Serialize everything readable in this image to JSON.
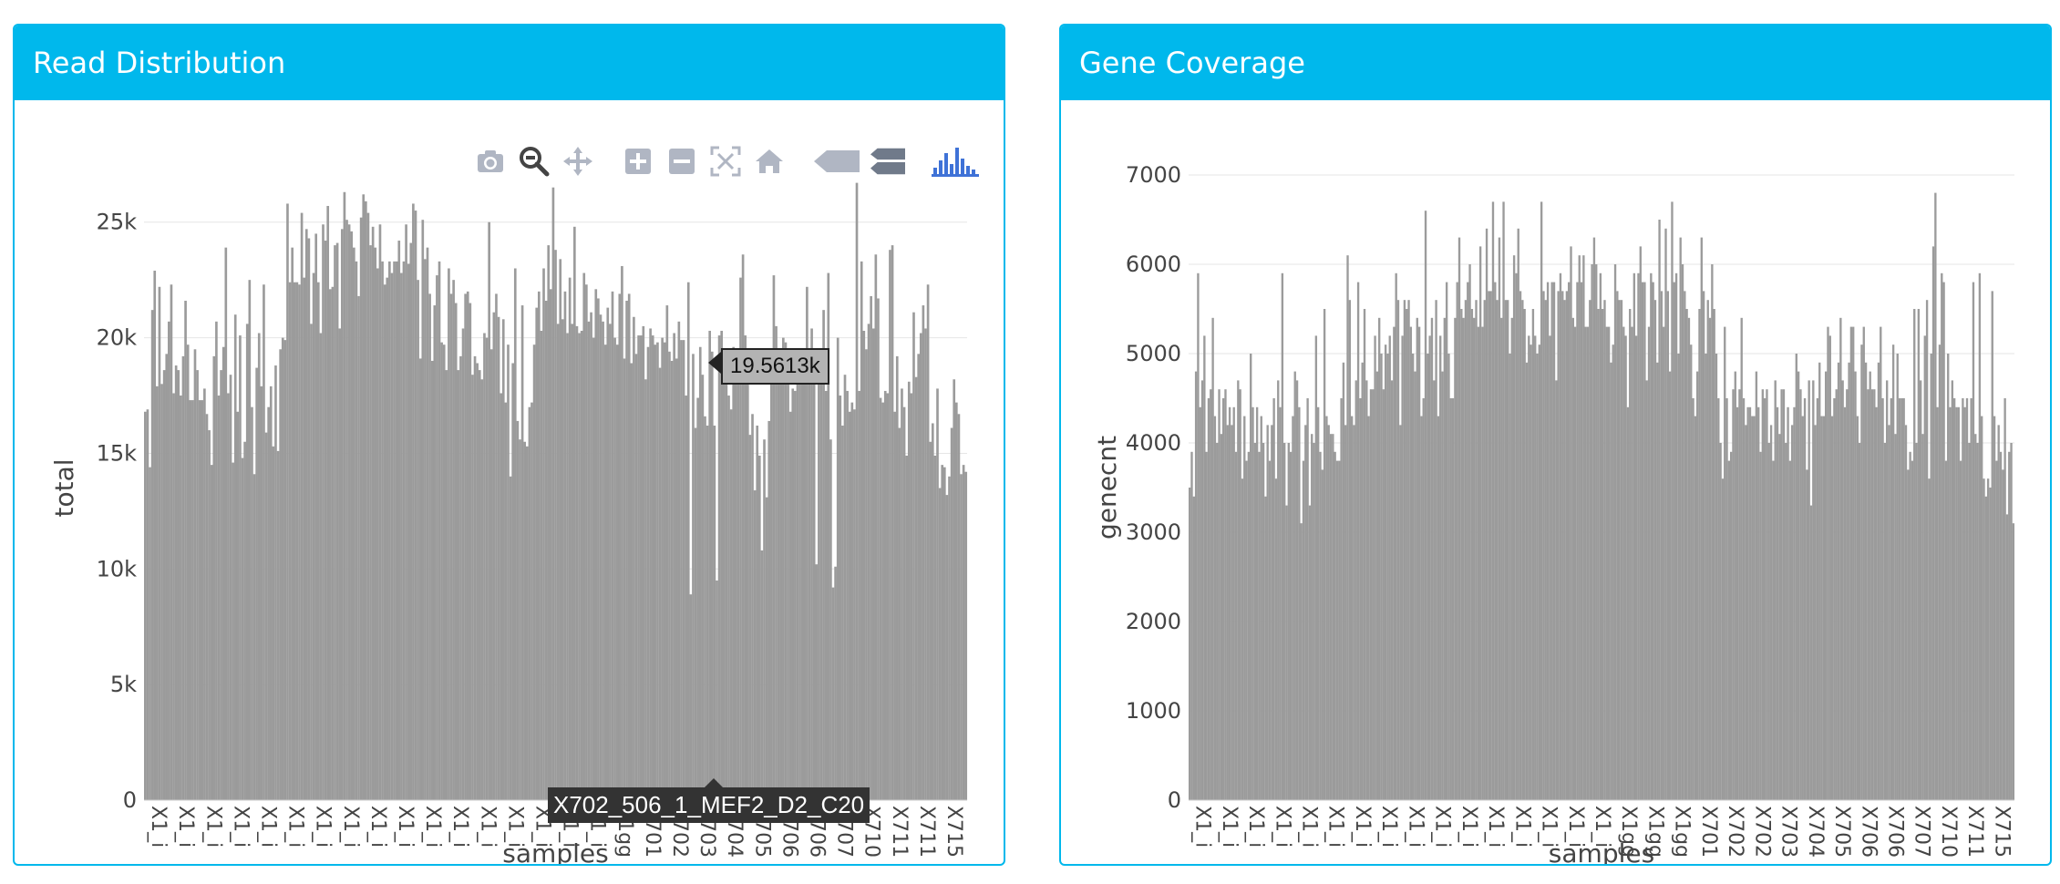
{
  "panels": {
    "read": {
      "title": "Read Distribution",
      "tooltip_value": "19.5613k",
      "hover_label": "X702_506_1_MEF2_D2_C20"
    },
    "gene": {
      "title": "Gene Coverage"
    }
  },
  "modebar": {
    "icons": [
      "camera-icon",
      "zoom-icon",
      "pan-icon",
      "zoom-in-icon",
      "zoom-out-icon",
      "autoscale-icon",
      "reset-axes-icon",
      "hover-closest-icon",
      "hover-compare-icon",
      "plotly-logo-icon"
    ],
    "active_color": "#444444",
    "inactive_color": "#b0b6c3",
    "logo_color": "#3f72d7"
  },
  "colors": {
    "header": "#00b8ec",
    "bar": "#9b9b9b",
    "grid": "#e6e6e6"
  },
  "chart_data": [
    {
      "type": "bar",
      "title": "Read Distribution",
      "xlabel": "samples",
      "ylabel": "total",
      "ylim": [
        0,
        27000
      ],
      "yticks": [
        0,
        5000,
        10000,
        15000,
        20000,
        25000
      ],
      "ytick_labels": [
        "0",
        "5k",
        "10k",
        "15k",
        "20k",
        "25k"
      ],
      "x_tick_labels": [
        "X1_i",
        "X1_i",
        "X1_i",
        "X1_i",
        "X1_i",
        "X1_i",
        "X1_i",
        "X1_i",
        "X1_i",
        "X1_i",
        "X1_i",
        "X1_i",
        "X1_i",
        "X1_i",
        "X1_i",
        "X1_i",
        "X1_i",
        "X1gg",
        "X701",
        "X702",
        "X703",
        "X704",
        "X705",
        "X706",
        "X706",
        "X707",
        "X710",
        "X711",
        "X711",
        "X715"
      ],
      "values": [
        16800,
        16900,
        14400,
        21200,
        22900,
        17900,
        22200,
        18000,
        18600,
        19300,
        20700,
        22300,
        17600,
        18800,
        18600,
        17500,
        19200,
        21600,
        19700,
        17300,
        17300,
        19500,
        18600,
        17300,
        17300,
        17800,
        16700,
        16000,
        14500,
        19200,
        20700,
        17500,
        18600,
        19600,
        23900,
        17600,
        18400,
        14600,
        21000,
        16800,
        20100,
        14800,
        15500,
        20600,
        22500,
        17000,
        14100,
        18700,
        20200,
        17900,
        22300,
        15900,
        17000,
        17900,
        15300,
        18800,
        15100,
        19500,
        20000,
        19900,
        25800,
        22400,
        23900,
        22400,
        22400,
        22300,
        25400,
        22600,
        24700,
        24300,
        20600,
        22800,
        24500,
        22400,
        20200,
        24900,
        24200,
        25700,
        22100,
        22200,
        24000,
        24100,
        20400,
        24700,
        26300,
        25100,
        24900,
        24600,
        23900,
        23300,
        21800,
        25200,
        26200,
        25900,
        25400,
        24000,
        24800,
        23900,
        23000,
        24900,
        23300,
        22300,
        22600,
        23300,
        22800,
        23300,
        23300,
        24200,
        22800,
        23300,
        24900,
        23200,
        24100,
        25800,
        25500,
        22500,
        19100,
        25100,
        23400,
        23900,
        21900,
        19000,
        21400,
        22700,
        23300,
        19800,
        19700,
        18600,
        23000,
        21900,
        22500,
        21500,
        18600,
        19200,
        20400,
        21900,
        22000,
        21500,
        18400,
        19200,
        18900,
        18600,
        18200,
        20200,
        20000,
        25000,
        19500,
        21100,
        21900,
        20900,
        17600,
        20800,
        17200,
        19700,
        14000,
        18900,
        23000,
        16400,
        15600,
        21400,
        15500,
        15300,
        17000,
        17200,
        19700,
        21300,
        22000,
        20300,
        23000,
        21600,
        24000,
        22100,
        26500,
        23800,
        20600,
        23400,
        20800,
        22000,
        20200,
        22600,
        20600,
        24800,
        20500,
        20200,
        20300,
        22800,
        22300,
        20700,
        21100,
        20000,
        22100,
        21700,
        21000,
        20700,
        19700,
        21300,
        20600,
        22000,
        20000,
        19700,
        21900,
        23100,
        19100,
        21600,
        21900,
        18900,
        20900,
        19300,
        20100,
        20100,
        20500,
        18200,
        19600,
        20400,
        20100,
        19700,
        19800,
        18700,
        20000,
        19800,
        21400,
        19400,
        19000,
        20200,
        19100,
        20700,
        19900,
        19900,
        17500,
        22400,
        8900,
        19300,
        16100,
        17400,
        19600,
        18400,
        16600,
        16200,
        20300,
        19400,
        16200,
        9500,
        20100,
        20300,
        18100,
        19200,
        17500,
        16900,
        19600,
        18400,
        18500,
        22600,
        23600,
        20100,
        19400,
        15800,
        16700,
        13400,
        16200,
        14900,
        10800,
        15600,
        13100,
        16400,
        19500,
        22700,
        20500,
        18700,
        18400,
        20000,
        19800,
        18700,
        16800,
        17800,
        17700,
        18900,
        18000,
        18400,
        19100,
        22200,
        19300,
        20400,
        19400,
        10200,
        18600,
        19300,
        21200,
        17700,
        22800,
        15600,
        9200,
        10100,
        20000,
        17500,
        16200,
        18400,
        17700,
        16800,
        17200,
        16900,
        26700,
        17700,
        23300,
        20300,
        19500,
        20600,
        21800,
        20400,
        23600,
        21700,
        17400,
        17200,
        17700,
        17600,
        23800,
        24000,
        16800,
        19200,
        16100,
        17800,
        17000,
        14900,
        18100,
        17600,
        21100,
        18300,
        19300,
        20200,
        21400,
        20400,
        22300,
        15500,
        16300,
        14900,
        17800,
        13500,
        14500,
        14400,
        13200,
        14000,
        16100,
        18200,
        17200,
        16700,
        14100,
        14500,
        14200
      ],
      "highlight_index": 246
    },
    {
      "type": "bar",
      "title": "Gene Coverage",
      "xlabel": "samples",
      "ylabel": "genecnt",
      "ylim": [
        0,
        7000
      ],
      "yticks": [
        0,
        1000,
        2000,
        3000,
        4000,
        5000,
        6000,
        7000
      ],
      "ytick_labels": [
        "0",
        "1000",
        "2000",
        "3000",
        "4000",
        "5000",
        "6000",
        "7000"
      ],
      "x_tick_labels": [
        "X1_i",
        "X1_i",
        "X1_i",
        "X1_i",
        "X1_i",
        "X1_i",
        "X1_i",
        "X1_i",
        "X1_i",
        "X1_i",
        "X1_i",
        "X1_i",
        "X1_i",
        "X1_i",
        "X1_i",
        "X1_i",
        "X1gg",
        "X1gg",
        "X1gg",
        "X701",
        "X702",
        "X702",
        "X703",
        "X704",
        "X705",
        "X706",
        "X706",
        "X707",
        "X710",
        "X711",
        "X715"
      ],
      "values": [
        3500,
        3900,
        3400,
        4800,
        5900,
        4400,
        4700,
        5200,
        3900,
        4500,
        4600,
        5400,
        4300,
        4000,
        4600,
        4100,
        4500,
        4600,
        4200,
        4400,
        4200,
        4400,
        3900,
        4700,
        4600,
        3600,
        4300,
        3800,
        3900,
        5000,
        4400,
        4000,
        4400,
        3900,
        4300,
        4000,
        3400,
        4200,
        3800,
        4200,
        4500,
        3600,
        4700,
        4400,
        5900,
        4000,
        3300,
        4000,
        3900,
        4300,
        4800,
        4700,
        4400,
        3100,
        3800,
        4200,
        4500,
        3300,
        4100,
        4000,
        5200,
        4400,
        3900,
        3700,
        5500,
        4300,
        4200,
        4100,
        4100,
        3900,
        3800,
        3800,
        4500,
        4900,
        4200,
        6100,
        5600,
        4300,
        4200,
        4700,
        5800,
        4500,
        4900,
        5500,
        4700,
        4300,
        4600,
        4600,
        5200,
        4800,
        5400,
        5000,
        4600,
        5100,
        5000,
        5200,
        4700,
        5300,
        5900,
        5600,
        4200,
        5200,
        5600,
        5500,
        5600,
        5300,
        5000,
        4800,
        5400,
        5300,
        4300,
        4500,
        6600,
        5000,
        5200,
        5400,
        4700,
        5600,
        4300,
        5200,
        4800,
        5400,
        5800,
        5000,
        4500,
        4500,
        5400,
        5800,
        6300,
        5500,
        5400,
        5600,
        5800,
        6000,
        5500,
        5400,
        5600,
        5300,
        6200,
        5300,
        5600,
        6400,
        5700,
        5700,
        6700,
        5800,
        5600,
        6300,
        5400,
        6700,
        5600,
        5600,
        5000,
        5400,
        6100,
        5900,
        6400,
        5700,
        5600,
        5500,
        4900,
        5200,
        5100,
        5500,
        5200,
        5000,
        5100,
        6700,
        5700,
        5600,
        5800,
        5200,
        5800,
        5800,
        4700,
        5700,
        5900,
        5700,
        5600,
        5700,
        5800,
        6200,
        5400,
        5300,
        5800,
        6100,
        5800,
        6100,
        5300,
        5300,
        5600,
        6000,
        6300,
        6000,
        5500,
        5900,
        5500,
        5600,
        5300,
        5300,
        4900,
        5100,
        6000,
        5700,
        5600,
        5600,
        5300,
        5200,
        4400,
        5500,
        5300,
        5900,
        5200,
        5900,
        6200,
        5800,
        5800,
        4700,
        5300,
        5900,
        5800,
        5600,
        4900,
        6500,
        5700,
        5300,
        6400,
        5700,
        4800,
        6700,
        5800,
        5900,
        5000,
        6300,
        6000,
        5700,
        5500,
        5400,
        5100,
        4500,
        4300,
        4800,
        5500,
        6300,
        5700,
        5000,
        5600,
        5400,
        6000,
        5500,
        5000,
        4500,
        4000,
        3600,
        5300,
        4500,
        3800,
        3900,
        4600,
        4800,
        4400,
        4600,
        5400,
        4500,
        4200,
        4400,
        4400,
        4300,
        4300,
        4800,
        4400,
        3900,
        4600,
        4500,
        4600,
        4000,
        4200,
        3800,
        4700,
        4400,
        4100,
        4600,
        4600,
        4000,
        4400,
        3800,
        4200,
        4400,
        5000,
        4800,
        4600,
        4300,
        4500,
        3700,
        4700,
        3300,
        4700,
        4200,
        4500,
        4900,
        4300,
        4300,
        4800,
        5300,
        5200,
        4300,
        4500,
        4600,
        4900,
        5400,
        4700,
        4400,
        4600,
        4900,
        5300,
        5300,
        4800,
        4300,
        4000,
        5100,
        5300,
        4900,
        4600,
        4800,
        4600,
        4600,
        4400,
        4900,
        5300,
        4500,
        4000,
        4700,
        4200,
        4500,
        5100,
        4100,
        5000,
        4500,
        4500,
        4500,
        4200,
        3700,
        3900,
        3800,
        5500,
        4000,
        5500,
        4700,
        4100,
        5200,
        5600,
        3600,
        5000,
        6200,
        6800,
        4400,
        5100,
        5900,
        5800,
        3800,
        5000,
        4400,
        4700,
        4500,
        4400,
        4400,
        3800,
        4500,
        4400,
        4500,
        4000,
        4500,
        5800,
        4100,
        4000,
        5900,
        4300,
        3600,
        3400,
        3600,
        3500,
        5700,
        4300,
        3800,
        4200,
        3900,
        3700,
        4500,
        3200,
        3900,
        4000,
        3100
      ]
    }
  ]
}
